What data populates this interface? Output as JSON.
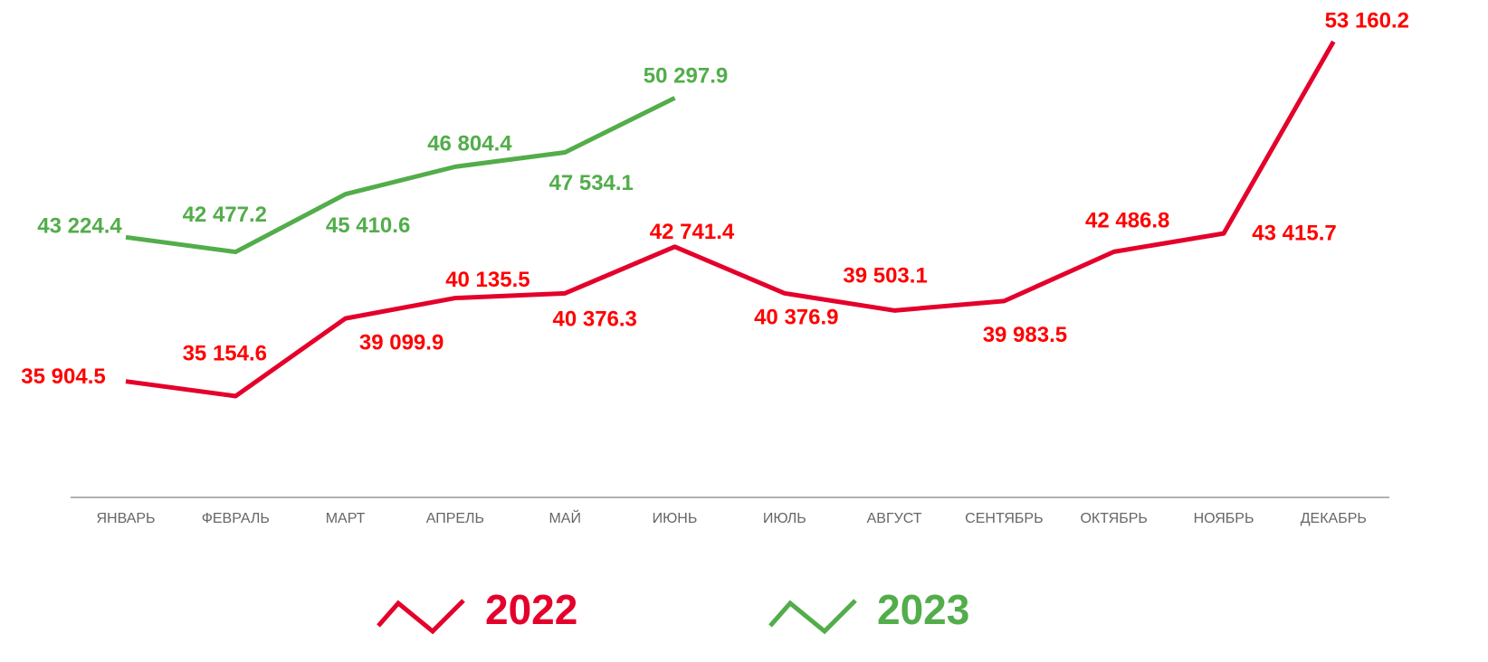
{
  "chart_data": {
    "type": "line",
    "categories": [
      "ЯНВАРЬ",
      "ФЕВРАЛЬ",
      "МАРТ",
      "АПРЕЛЬ",
      "МАЙ",
      "ИЮНЬ",
      "ИЮЛЬ",
      "АВГУСТ",
      "СЕНТЯБРЬ",
      "ОКТЯБРЬ",
      "НОЯБРЬ",
      "ДЕКАБРЬ"
    ],
    "series": [
      {
        "name": "2022",
        "color": "#e4002b",
        "label_color": "#ff0000",
        "values": [
          35904.5,
          35154.6,
          39099.9,
          40135.5,
          40376.3,
          42741.4,
          40376.9,
          39503.1,
          39983.5,
          42486.8,
          43415.7,
          53160.2
        ],
        "value_labels": [
          "35 904.5",
          "35 154.6",
          "39 099.9",
          "40 135.5",
          "40 376.3",
          "42 741.4",
          "40 376.9",
          "39 503.1",
          "39 983.5",
          "42 486.8",
          "43 415.7",
          "53 160.2"
        ]
      },
      {
        "name": "2023",
        "color": "#52ad4a",
        "label_color": "#52ad4a",
        "values": [
          43224.4,
          42477.2,
          45410.6,
          46804.4,
          47534.1,
          50297.9,
          null,
          null,
          null,
          null,
          null,
          null
        ],
        "value_labels": [
          "43 224.4",
          "42 477.2",
          "45 410.6",
          "46 804.4",
          "47 534.1",
          "50 297.9",
          null,
          null,
          null,
          null,
          null,
          null
        ]
      }
    ],
    "legend": "bottom"
  }
}
